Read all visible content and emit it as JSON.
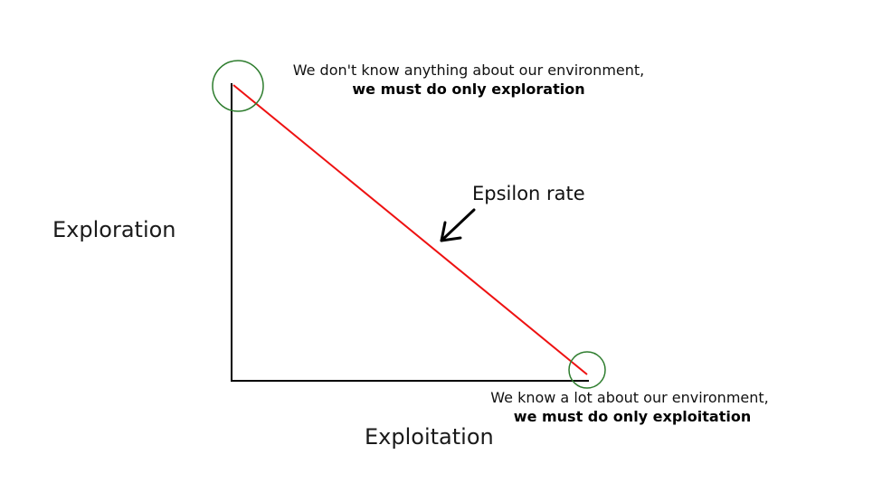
{
  "diagram": {
    "y_axis_label": "Exploration",
    "x_axis_label": "Exploitation",
    "line_label": "Epsilon rate",
    "top_annotation": {
      "line1": "We don't know anything about our environment,",
      "line2": "we must do only exploration"
    },
    "bottom_annotation": {
      "line1": "We know a lot about our environment,",
      "line2": "we must do only exploitation"
    }
  },
  "colors": {
    "axis": "#000000",
    "epsilon_line": "#ee1111",
    "circle": "#2e7d2e",
    "arrow": "#000000"
  }
}
